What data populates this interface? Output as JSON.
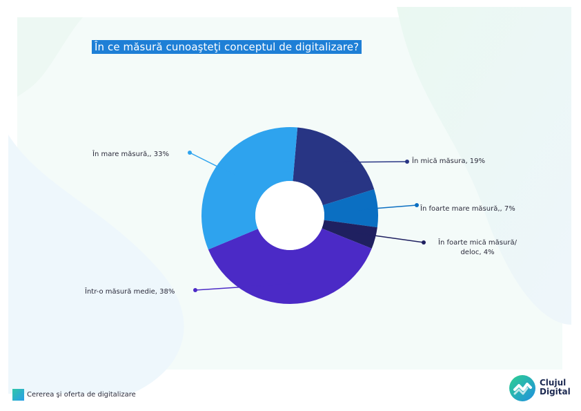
{
  "title": "În ce măsură cunoaşteţi conceptul de digitalizare?",
  "chart_data": {
    "type": "pie",
    "title": "În ce măsură cunoaşteţi conceptul de digitalizare?",
    "slices": [
      {
        "label": "În mare măsură,",
        "value": 33,
        "text": "În mare măsură,, 33%",
        "color": "#2ea3ee"
      },
      {
        "label": "În mică măsura",
        "value": 19,
        "text": "În mică măsura, 19%",
        "color": "#283584"
      },
      {
        "label": "În foarte mare măsură,",
        "value": 7,
        "text": "În foarte mare măsură,, 7%",
        "color": "#0b6fc2"
      },
      {
        "label": "În foarte mică măsură/ deloc",
        "value": 4,
        "text_line1": "În foarte mică măsură/",
        "text_line2": "deloc, 4%",
        "color": "#1f2060"
      },
      {
        "label": "Într-o măsură medie",
        "value": 38,
        "text": "Într-o măsură medie, 38%",
        "color": "#4b2ac6"
      }
    ],
    "legend": "none",
    "donut": true
  },
  "footer": {
    "text": "Cererea şi oferta de digitalizare"
  },
  "logo": {
    "line1": "Clujul",
    "line2": "Digital"
  },
  "colors": {
    "accent": "#1e7fd6",
    "bg_green": "#eaf8f2",
    "bg_blue": "#eef7fc"
  }
}
